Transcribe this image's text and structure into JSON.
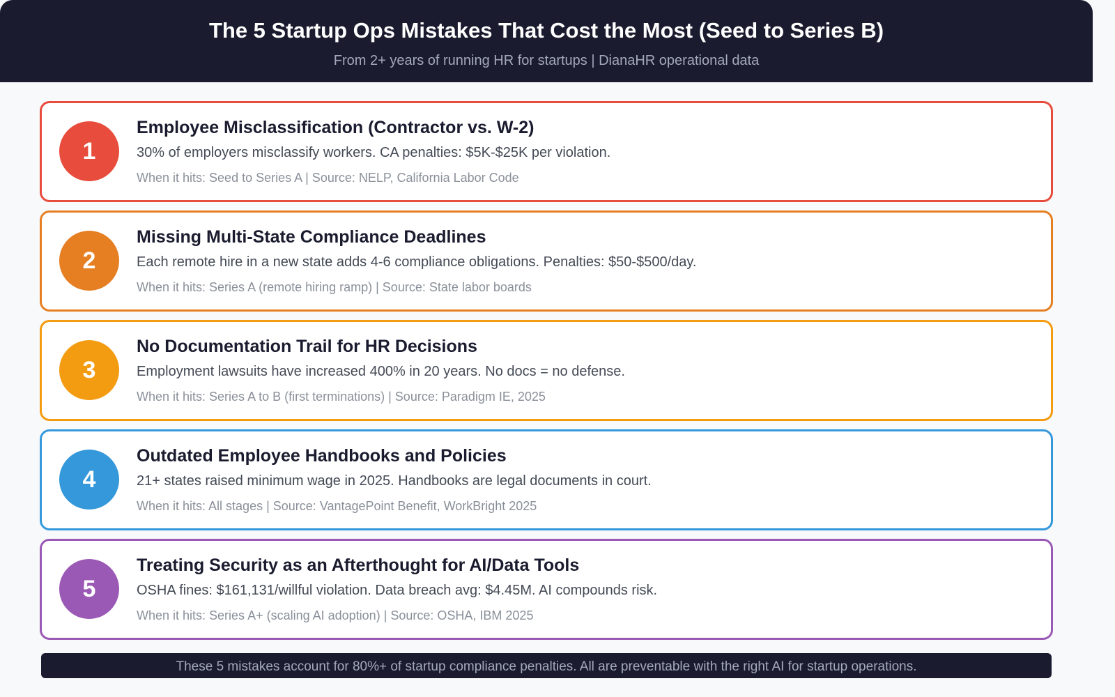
{
  "header": {
    "title": "The 5 Startup Ops Mistakes That Cost the Most (Seed to Series B)",
    "subtitle": "From 2+ years of running HR for startups | DianaHR operational data"
  },
  "mistakes": [
    {
      "number": "1",
      "title": "Employee Misclassification (Contractor vs. W-2)",
      "description": "30% of employers misclassify workers. CA penalties: $5K-$25K per violation.",
      "meta": "When it hits: Seed to Series A | Source: NELP, California Labor Code",
      "color": "#e74c3c"
    },
    {
      "number": "2",
      "title": "Missing Multi-State Compliance Deadlines",
      "description": "Each remote hire in a new state adds 4-6 compliance obligations. Penalties: $50-$500/day.",
      "meta": "When it hits: Series A (remote hiring ramp) | Source: State labor boards",
      "color": "#e67e22"
    },
    {
      "number": "3",
      "title": "No Documentation Trail for HR Decisions",
      "description": "Employment lawsuits have increased 400% in 20 years. No docs = no defense.",
      "meta": "When it hits: Series A to B (first terminations) | Source: Paradigm IE, 2025",
      "color": "#f39c12"
    },
    {
      "number": "4",
      "title": "Outdated Employee Handbooks and Policies",
      "description": "21+ states raised minimum wage in 2025. Handbooks are legal documents in court.",
      "meta": "When it hits: All stages | Source: VantagePoint Benefit, WorkBright 2025",
      "color": "#3498db"
    },
    {
      "number": "5",
      "title": "Treating Security as an Afterthought for AI/Data Tools",
      "description": "OSHA fines: $161,131/willful violation. Data breach avg: $4.45M. AI compounds risk.",
      "meta": "When it hits: Series A+ (scaling AI adoption) | Source: OSHA, IBM 2025",
      "color": "#9b59b6"
    }
  ],
  "footer": {
    "text": "These 5 mistakes account for 80%+ of startup compliance penalties. All are preventable with the right AI for startup operations."
  }
}
